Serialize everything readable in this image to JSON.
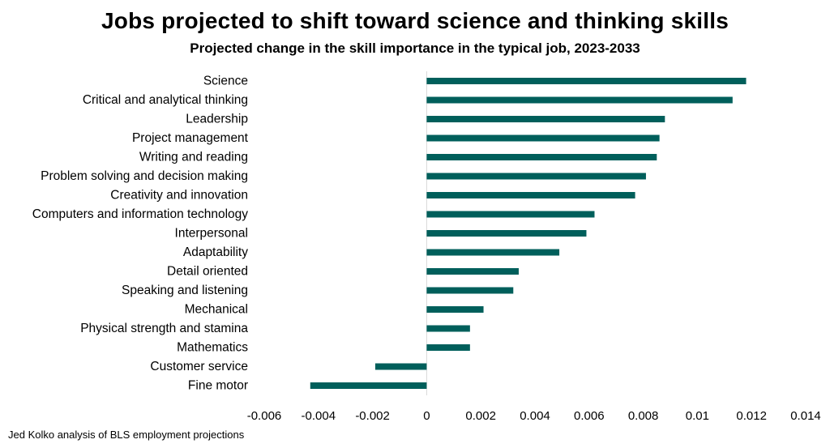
{
  "chart_data": {
    "type": "bar",
    "orientation": "horizontal",
    "title": "Jobs projected to shift toward science and thinking skills",
    "subtitle": "Projected change in the skill importance in the typical job, 2023-2033",
    "source": "Jed Kolko analysis of BLS employment projections",
    "categories": [
      "Science",
      "Critical and analytical thinking",
      "Leadership",
      "Project management",
      "Writing and reading",
      "Problem solving and decision making",
      "Creativity and innovation",
      "Computers and information technology",
      "Interpersonal",
      "Adaptability",
      "Detail oriented",
      "Speaking and listening",
      "Mechanical",
      "Physical strength and stamina",
      "Mathematics",
      "Customer service",
      "Fine motor"
    ],
    "values": [
      0.0118,
      0.0113,
      0.0088,
      0.0086,
      0.0085,
      0.0081,
      0.0077,
      0.0062,
      0.0059,
      0.0049,
      0.0034,
      0.0032,
      0.0021,
      0.0016,
      0.0016,
      -0.0019,
      -0.0043
    ],
    "xlim": [
      -0.006,
      0.014
    ],
    "xticks": [
      -0.006,
      -0.004,
      -0.002,
      0,
      0.002,
      0.004,
      0.006,
      0.008,
      0.01,
      0.012,
      0.014
    ],
    "xtick_labels": [
      "-0.006",
      "-0.004",
      "-0.002",
      "0",
      "0.002",
      "0.004",
      "0.006",
      "0.008",
      "0.01",
      "0.012",
      "0.014"
    ],
    "xlabel": "",
    "ylabel": "",
    "grid": false,
    "bar_color": "#005f5b",
    "axis_color": "#d9d9d9"
  }
}
